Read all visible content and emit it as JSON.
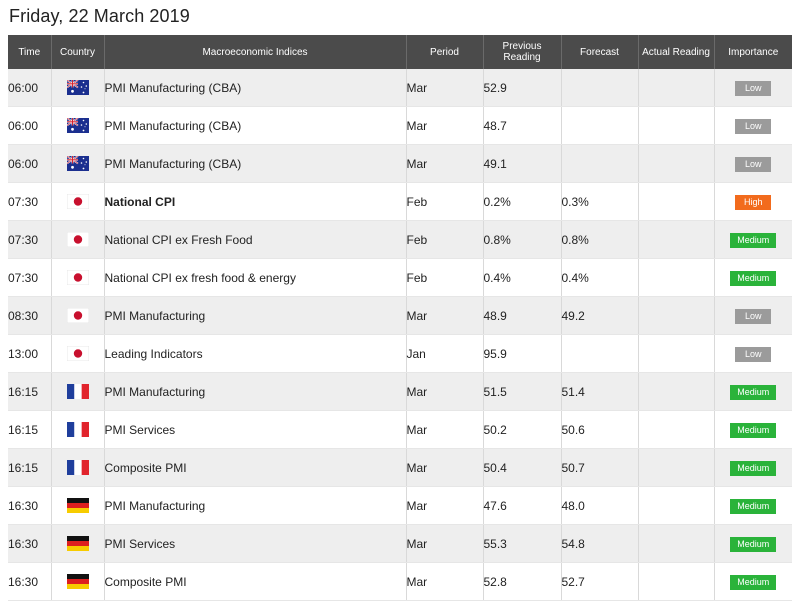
{
  "page": {
    "date_title": "Friday, 22 March 2019"
  },
  "columns": {
    "time": "Time",
    "country": "Country",
    "event": "Macroeconomic Indices",
    "period": "Period",
    "previous": "Previous Reading",
    "forecast": "Forecast",
    "actual": "Actual Reading",
    "importance": "Importance"
  },
  "importance_colors": {
    "Low": "#9b9b9b",
    "High": "#f26b1d",
    "Medium": "#2ab33a"
  },
  "rows": [
    {
      "time": "06:00",
      "country": "australia-flag-icon",
      "event": "PMI Manufacturing (CBA)",
      "bold": false,
      "period": "Mar",
      "previous": "52.9",
      "forecast": "",
      "actual": "",
      "importance": "Low"
    },
    {
      "time": "06:00",
      "country": "australia-flag-icon",
      "event": "PMI Manufacturing (CBA)",
      "bold": false,
      "period": "Mar",
      "previous": "48.7",
      "forecast": "",
      "actual": "",
      "importance": "Low"
    },
    {
      "time": "06:00",
      "country": "australia-flag-icon",
      "event": "PMI Manufacturing (CBA)",
      "bold": false,
      "period": "Mar",
      "previous": "49.1",
      "forecast": "",
      "actual": "",
      "importance": "Low"
    },
    {
      "time": "07:30",
      "country": "japan-flag-icon",
      "event": "National CPI",
      "bold": true,
      "period": "Feb",
      "previous": "0.2%",
      "forecast": "0.3%",
      "actual": "",
      "importance": "High"
    },
    {
      "time": "07:30",
      "country": "japan-flag-icon",
      "event": "National CPI ex Fresh Food",
      "bold": false,
      "period": "Feb",
      "previous": "0.8%",
      "forecast": "0.8%",
      "actual": "",
      "importance": "Medium"
    },
    {
      "time": "07:30",
      "country": "japan-flag-icon",
      "event": "National CPI ex fresh food & energy",
      "bold": false,
      "period": "Feb",
      "previous": "0.4%",
      "forecast": "0.4%",
      "actual": "",
      "importance": "Medium"
    },
    {
      "time": "08:30",
      "country": "japan-flag-icon",
      "event": "PMI Manufacturing",
      "bold": false,
      "period": "Mar",
      "previous": "48.9",
      "forecast": "49.2",
      "actual": "",
      "importance": "Low"
    },
    {
      "time": "13:00",
      "country": "japan-flag-icon",
      "event": "Leading Indicators",
      "bold": false,
      "period": "Jan",
      "previous": "95.9",
      "forecast": "",
      "actual": "",
      "importance": "Low"
    },
    {
      "time": "16:15",
      "country": "france-flag-icon",
      "event": "PMI Manufacturing",
      "bold": false,
      "period": "Mar",
      "previous": "51.5",
      "forecast": "51.4",
      "actual": "",
      "importance": "Medium"
    },
    {
      "time": "16:15",
      "country": "france-flag-icon",
      "event": "PMI Services",
      "bold": false,
      "period": "Mar",
      "previous": "50.2",
      "forecast": "50.6",
      "actual": "",
      "importance": "Medium"
    },
    {
      "time": "16:15",
      "country": "france-flag-icon",
      "event": "Composite PMI",
      "bold": false,
      "period": "Mar",
      "previous": "50.4",
      "forecast": "50.7",
      "actual": "",
      "importance": "Medium"
    },
    {
      "time": "16:30",
      "country": "germany-flag-icon",
      "event": "PMI Manufacturing",
      "bold": false,
      "period": "Mar",
      "previous": "47.6",
      "forecast": "48.0",
      "actual": "",
      "importance": "Medium"
    },
    {
      "time": "16:30",
      "country": "germany-flag-icon",
      "event": "PMI Services",
      "bold": false,
      "period": "Mar",
      "previous": "55.3",
      "forecast": "54.8",
      "actual": "",
      "importance": "Medium"
    },
    {
      "time": "16:30",
      "country": "germany-flag-icon",
      "event": "Composite PMI",
      "bold": false,
      "period": "Mar",
      "previous": "52.8",
      "forecast": "52.7",
      "actual": "",
      "importance": "Medium"
    }
  ]
}
